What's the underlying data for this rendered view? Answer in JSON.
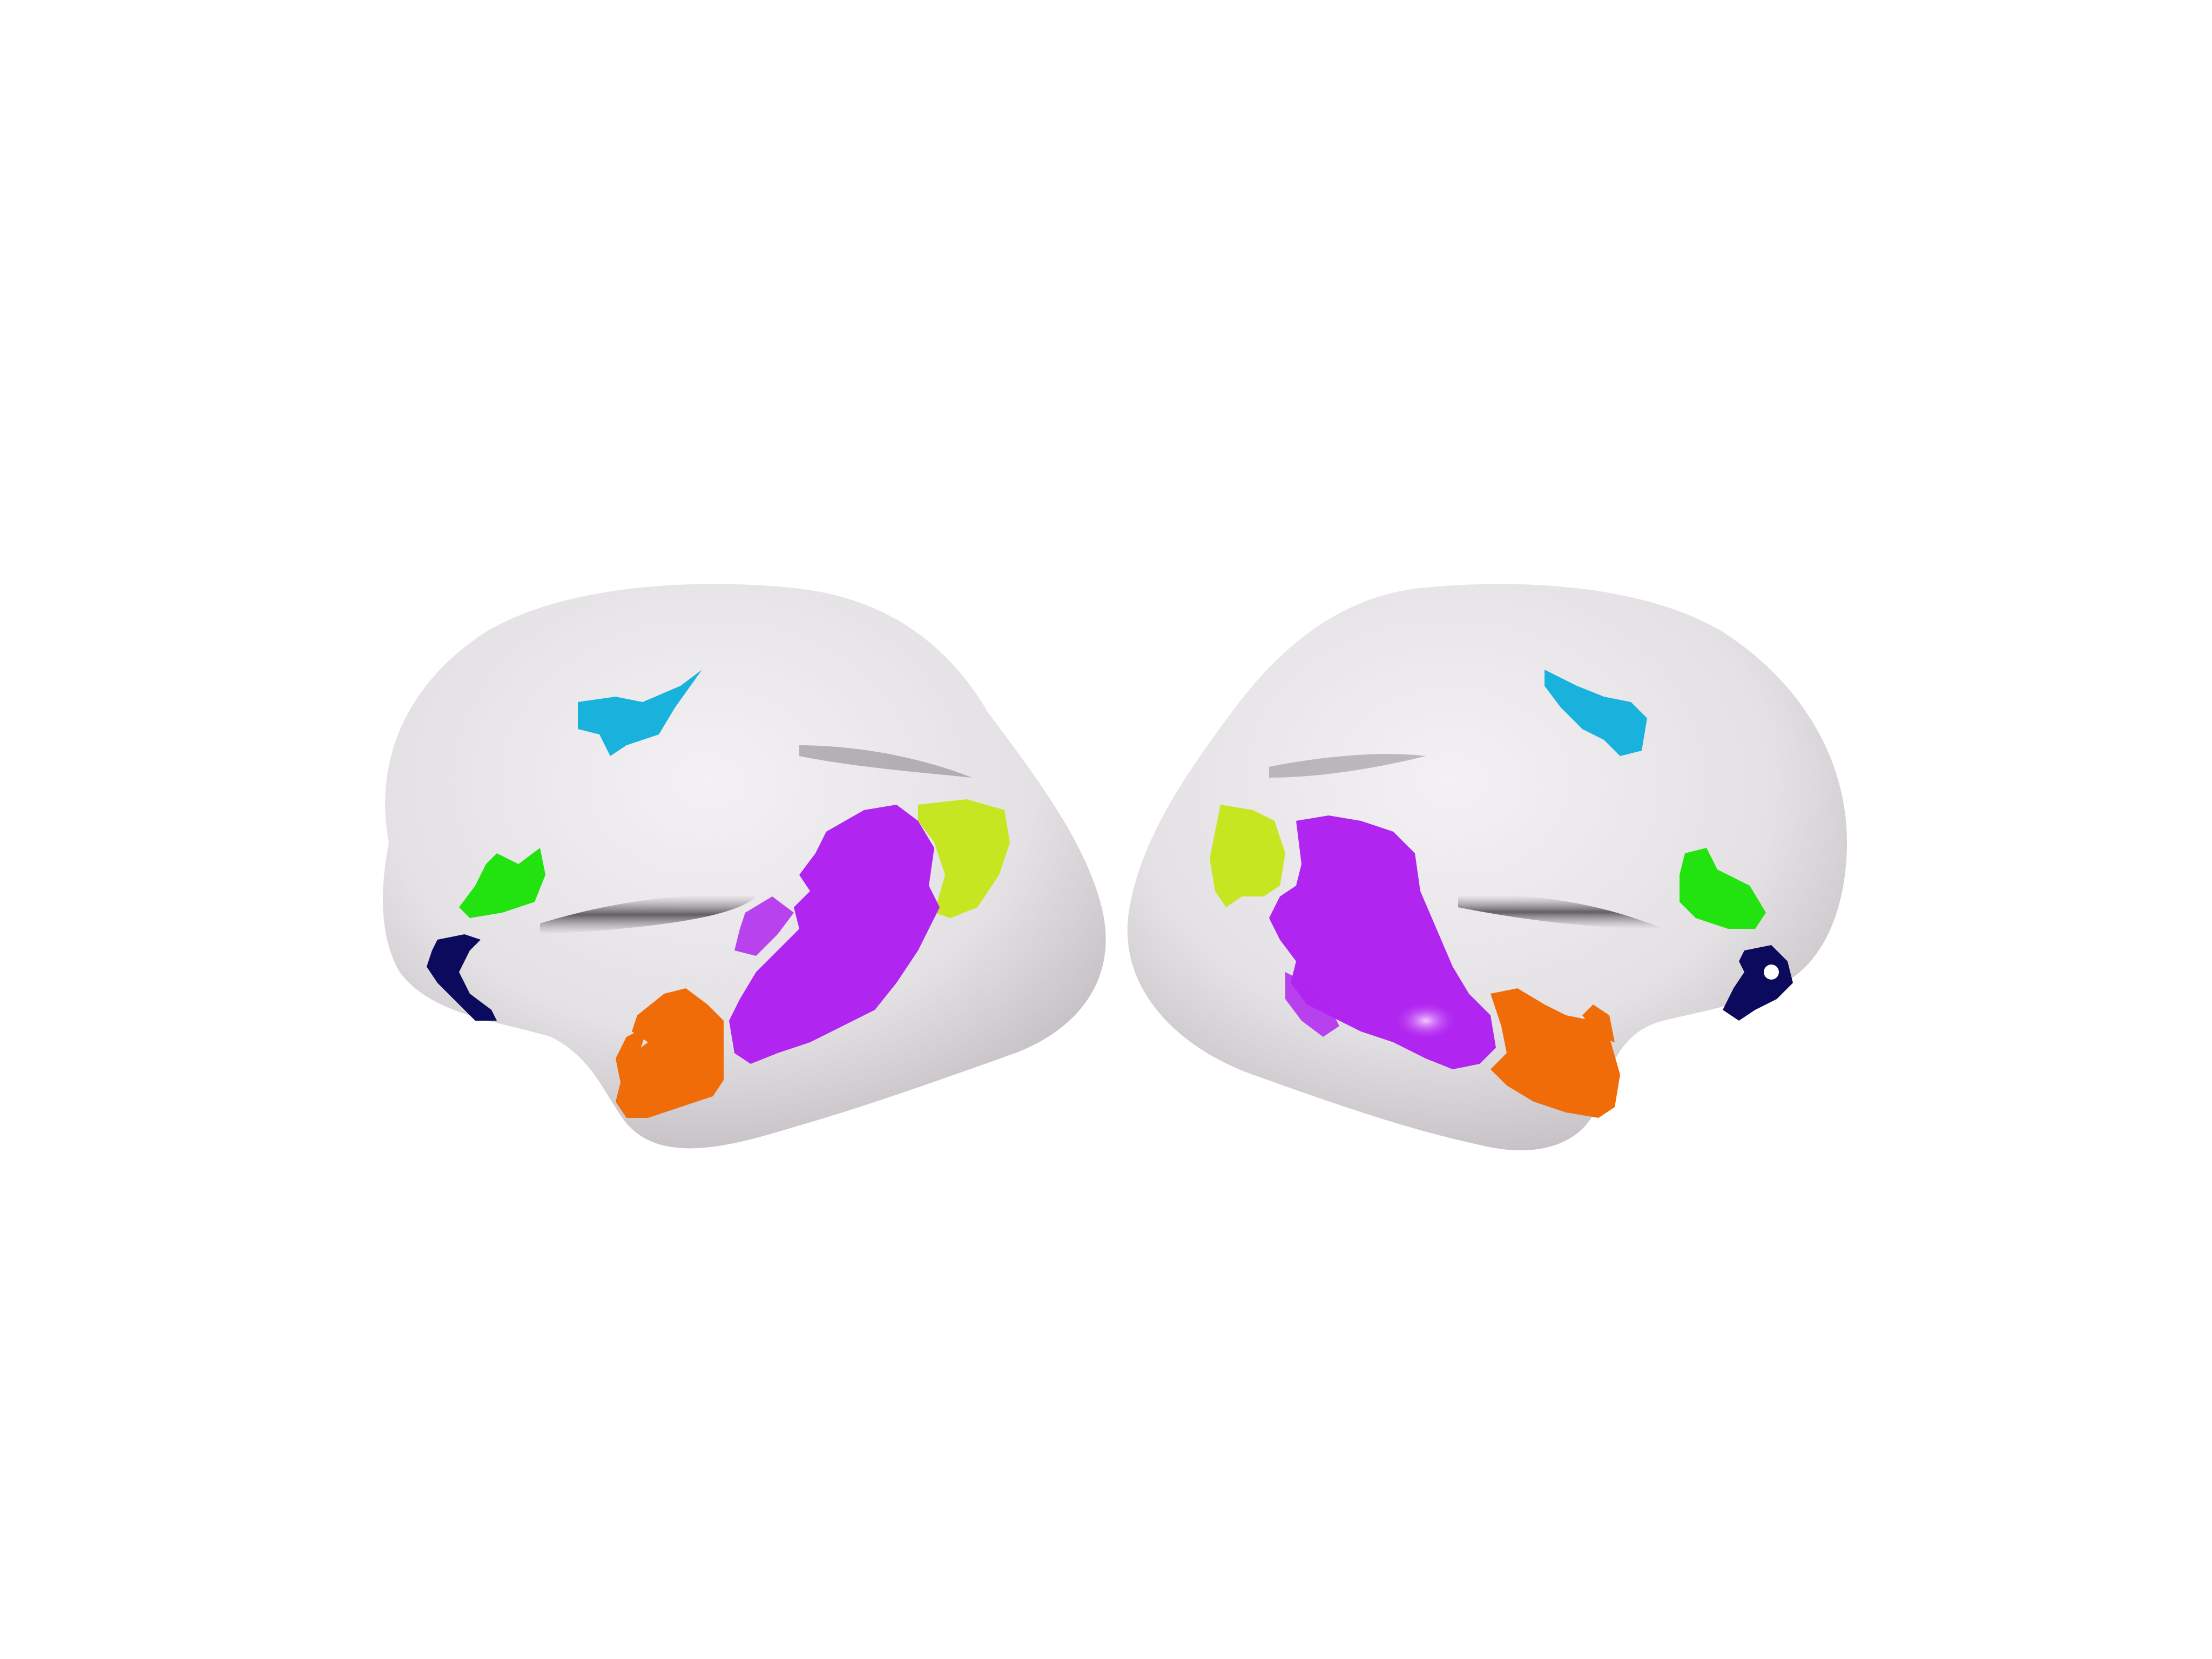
{
  "scene": {
    "background": "#ffffff",
    "surface_color": "#e6e3e6",
    "hemispheres": [
      {
        "name": "left-hemisphere",
        "view": "lateral"
      },
      {
        "name": "right-hemisphere",
        "view": "lateral"
      }
    ]
  },
  "regions": [
    {
      "name": "cyan-region",
      "color": "#19b2dd"
    },
    {
      "name": "green-region",
      "color": "#22e30f"
    },
    {
      "name": "navy-region",
      "color": "#0c0a5c"
    },
    {
      "name": "purple-region",
      "color": "#b025f0"
    },
    {
      "name": "yellow-green-region",
      "color": "#c5e620"
    },
    {
      "name": "orange-region",
      "color": "#f06c08"
    }
  ]
}
